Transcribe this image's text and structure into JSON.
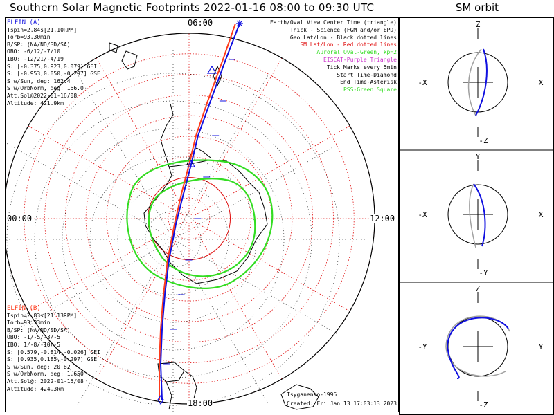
{
  "title": "Southern Solar Magnetic Footprints 2022-01-16 08:00 to 09:30 UTC",
  "side_title": "SM orbit",
  "colors": {
    "probe_a": "#1010e0",
    "probe_b": "#ff3a1a",
    "oval": "#33dd22",
    "grid_red": "#e01010",
    "grid_black": "#000000",
    "eiscat": "#cc33cc",
    "orbit_gray": "#a0a0a0"
  },
  "probe_a": {
    "name": "ELFIN (A)",
    "lines": [
      "Tspin=2.84s[21.10RPM]",
      "Torb=93.30min",
      "B/SP: (NA/ND/SD/SA)",
      "OBO: -6/12/-7/10",
      "IBO: -12/21/-4/19",
      "S: [-0.375,0.923,0.079] GEI",
      "S: [-0.953,0.050,-0.297] GSE",
      "S w/Sun, deg: 162.4",
      "S w/OrbNorm, deg: 166.0",
      "Att.Sol@2022-01-16/08",
      "Altitude: 421.9km"
    ]
  },
  "probe_b": {
    "name": "ELFIN (B)",
    "lines": [
      "Tspin=2.83s[21.13RPM]",
      "Torb=93.33min",
      "B/SP: (NA/ND/SD/SA)",
      "OBO: -1/-5/-3/-5",
      "IBO: 1/-8/-10/-5",
      "S: [0.579,-0.814,-0.026] GEI",
      "S: [0.935,0.185,-0.297] GSE",
      "S w/Sun, deg: 20.82",
      "S w/OrbNorm, deg: 1.650",
      "Att.Sol@: 2022-01-15/08",
      "Altitude: 424.3km"
    ]
  },
  "legend": [
    {
      "text": "Earth/Oval View Center Time (triangle)",
      "color": "#000000"
    },
    {
      "text": "Thick - Science (FGM and/or EPD)",
      "color": "#000000"
    },
    {
      "text": "Geo Lat/Lon - Black dotted lines",
      "color": "#000000"
    },
    {
      "text": "SM Lat/Lon - Red dotted lines",
      "color": "#e01010"
    },
    {
      "text": "Auroral Oval-Green, kp=2",
      "color": "#33dd22"
    },
    {
      "text": "EISCAT-Purple Triangle",
      "color": "#cc33cc"
    },
    {
      "text": "Tick Marks every 5min",
      "color": "#000000"
    },
    {
      "text": "Start Time-Diamond",
      "color": "#000000"
    },
    {
      "text": "End Time-Asterisk",
      "color": "#000000"
    },
    {
      "text": "PSS-Green Square",
      "color": "#33dd22"
    }
  ],
  "footer": {
    "model": "Tsyganenko-1996",
    "created": "Created: Fri Jan 13 17:03:13 2023"
  },
  "chart_data": {
    "type": "polar-map",
    "projection": "southern hemisphere, solar magnetic coordinates",
    "mlt_labels": {
      "top": "06:00",
      "left": "00:00",
      "right": "12:00",
      "bottom": "18:00"
    },
    "sm_latitude_circles_deg": [
      -90,
      -80,
      -70,
      -60,
      -50,
      -40,
      -30,
      -20,
      -10,
      0
    ],
    "sm_mlt_meridians_hours": [
      0,
      2,
      4,
      6,
      8,
      10,
      12,
      14,
      16,
      18,
      20,
      22
    ],
    "auroral_oval_kp": 2,
    "tick_interval_min": 5,
    "series": [
      {
        "name": "ELFIN (A)",
        "color": "#1010e0",
        "points_lat_mlt": [
          [
            -10,
            6.1
          ],
          [
            -25,
            6.3
          ],
          [
            -40,
            6.5
          ],
          [
            -55,
            6.8
          ],
          [
            -68,
            7.6
          ],
          [
            -80,
            10.5
          ],
          [
            -72,
            15.8
          ],
          [
            -58,
            17.0
          ],
          [
            -45,
            17.4
          ],
          [
            -30,
            17.6
          ],
          [
            -15,
            17.8
          ],
          [
            -2,
            17.9
          ]
        ]
      },
      {
        "name": "ELFIN (B)",
        "color": "#ff3a1a",
        "points_lat_mlt": [
          [
            -10,
            6.0
          ],
          [
            -25,
            6.2
          ],
          [
            -40,
            6.4
          ],
          [
            -55,
            6.7
          ],
          [
            -68,
            7.4
          ],
          [
            -80,
            10.8
          ],
          [
            -72,
            16.0
          ],
          [
            -58,
            17.1
          ],
          [
            -45,
            17.5
          ],
          [
            -30,
            17.7
          ],
          [
            -15,
            17.85
          ],
          [
            -2,
            17.95
          ]
        ]
      }
    ]
  },
  "orbit_panels": [
    {
      "id": "xz",
      "axes": {
        "top": "Z",
        "bottom": "-Z",
        "left": "-X",
        "right": "X"
      }
    },
    {
      "id": "xy",
      "axes": {
        "top": "Y",
        "bottom": "-Y",
        "left": "-X",
        "right": "X"
      }
    },
    {
      "id": "yz",
      "axes": {
        "top": "Z",
        "bottom": "-Z",
        "left": "-Y",
        "right": "Y"
      }
    }
  ]
}
